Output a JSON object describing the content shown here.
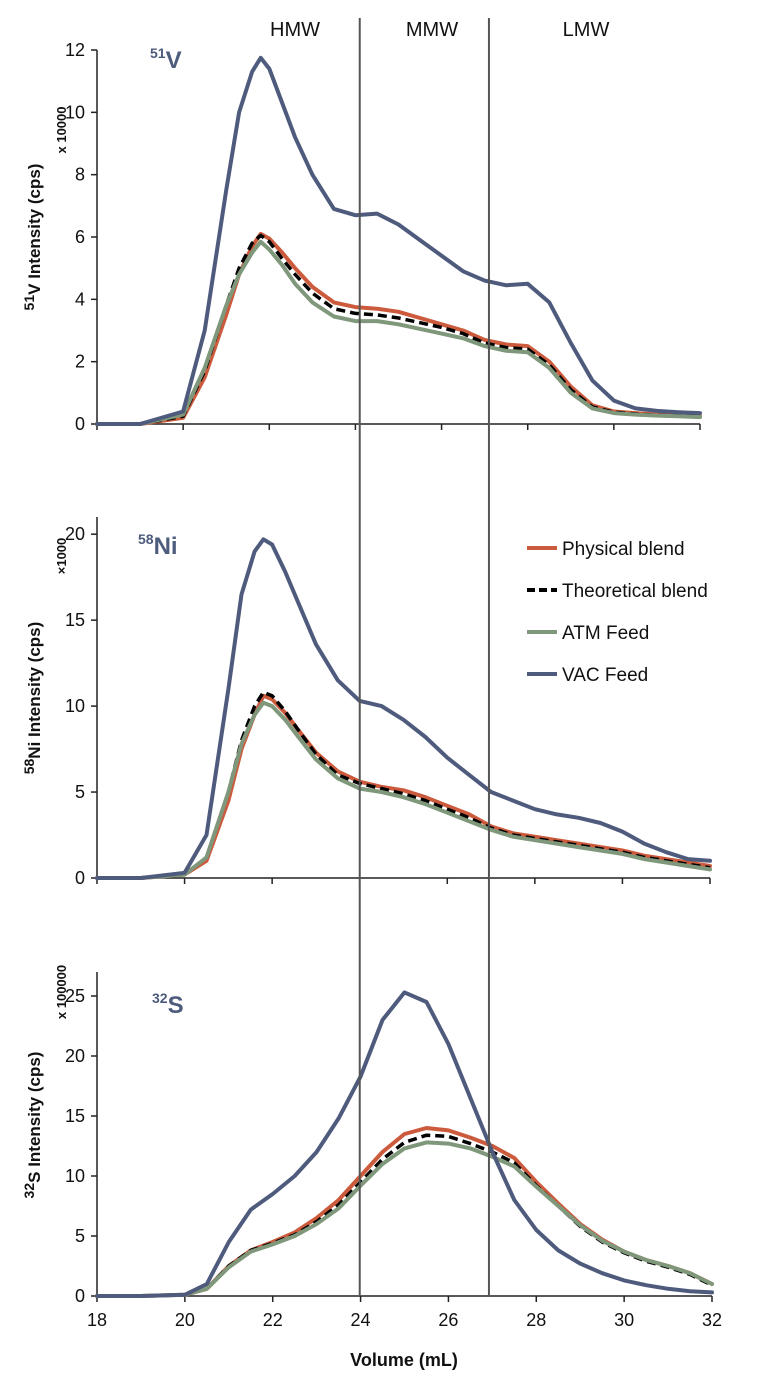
{
  "chart_data": {
    "type": "line",
    "xlabel": "Volume (mL)",
    "xlim": [
      18,
      32
    ],
    "x_ticks": [
      18,
      20,
      22,
      24,
      26,
      28,
      30,
      32
    ],
    "regions": [
      {
        "label": "HMW"
      },
      {
        "label": "MMW"
      },
      {
        "label": "LMW"
      }
    ],
    "region_boundaries": [
      24.1,
      27.1
    ],
    "legend": {
      "placement": "right, middle panel"
    },
    "colors": {
      "Physical blend": "#cc5a3c",
      "Theoretical blend": "#000000",
      "ATM Feed": "#7f977a",
      "VAC Feed": "#4f5b7d"
    },
    "panels": [
      {
        "element_mass": "51",
        "element_symbol": "V",
        "ylabel_sup": "51",
        "ylabel_rest": "V Intensity (cps)",
        "multiplier": "x 10000",
        "ylim": [
          0,
          12
        ],
        "y_ticks": [
          0,
          2,
          4,
          6,
          8,
          10,
          12
        ],
        "x": [
          18,
          19,
          20,
          20.5,
          21,
          21.3,
          21.6,
          21.8,
          22,
          22.3,
          22.6,
          23,
          23.5,
          24,
          24.5,
          25,
          25.5,
          26,
          26.5,
          27,
          27.5,
          28,
          28.5,
          29,
          29.5,
          30,
          30.5,
          31,
          31.5,
          32
        ],
        "series": [
          {
            "name": "Physical blend",
            "values": [
              0,
              0,
              0.2,
              1.5,
              3.5,
              4.8,
              5.7,
              6.1,
              5.95,
              5.5,
              5.0,
              4.4,
              3.9,
              3.75,
              3.7,
              3.6,
              3.4,
              3.2,
              3.0,
              2.7,
              2.55,
              2.5,
              2.0,
              1.2,
              0.6,
              0.4,
              0.35,
              0.3,
              0.28,
              0.25
            ]
          },
          {
            "name": "Theoretical blend",
            "values": [
              0,
              0,
              0.25,
              1.7,
              3.8,
              5.0,
              5.8,
              6.05,
              5.85,
              5.3,
              4.8,
              4.2,
              3.7,
              3.55,
              3.5,
              3.4,
              3.25,
              3.1,
              2.9,
              2.6,
              2.45,
              2.4,
              1.9,
              1.1,
              0.55,
              0.38,
              0.32,
              0.28,
              0.26,
              0.24
            ]
          },
          {
            "name": "ATM Feed",
            "values": [
              0,
              0,
              0.3,
              1.8,
              3.8,
              4.8,
              5.5,
              5.85,
              5.6,
              5.1,
              4.5,
              3.9,
              3.45,
              3.3,
              3.3,
              3.2,
              3.05,
              2.9,
              2.75,
              2.5,
              2.35,
              2.3,
              1.8,
              1.0,
              0.5,
              0.35,
              0.3,
              0.27,
              0.25,
              0.22
            ]
          },
          {
            "name": "VAC Feed",
            "values": [
              0,
              0,
              0.4,
              3.0,
              7.5,
              10.0,
              11.3,
              11.75,
              11.4,
              10.3,
              9.2,
              8.0,
              6.9,
              6.7,
              6.75,
              6.4,
              5.9,
              5.4,
              4.9,
              4.6,
              4.45,
              4.5,
              3.9,
              2.6,
              1.4,
              0.75,
              0.5,
              0.42,
              0.38,
              0.35
            ]
          }
        ]
      },
      {
        "element_mass": "58",
        "element_symbol": "Ni",
        "ylabel_sup": "58",
        "ylabel_rest": "Ni Intensity (cps)",
        "multiplier": "×1000",
        "ylim": [
          0,
          21
        ],
        "y_ticks": [
          0,
          5,
          10,
          15,
          20
        ],
        "x": [
          18,
          19,
          20,
          20.5,
          21,
          21.3,
          21.6,
          21.8,
          22,
          22.3,
          22.6,
          23,
          23.5,
          24,
          24.5,
          25,
          25.5,
          26,
          26.5,
          27,
          27.5,
          28,
          28.5,
          29,
          29.5,
          30,
          30.5,
          31,
          31.5,
          32
        ],
        "series": [
          {
            "name": "Physical blend",
            "values": [
              0,
              0,
              0.2,
              1.0,
              4.5,
              7.5,
              9.5,
              10.6,
              10.4,
              9.6,
              8.6,
              7.3,
              6.2,
              5.6,
              5.3,
              5.1,
              4.7,
              4.2,
              3.7,
              3.0,
              2.6,
              2.4,
              2.2,
              2.0,
              1.8,
              1.6,
              1.3,
              1.1,
              0.9,
              0.7
            ]
          },
          {
            "name": "Theoretical blend",
            "values": [
              0,
              0,
              0.2,
              1.2,
              5.0,
              8.0,
              10.0,
              10.8,
              10.6,
              9.7,
              8.6,
              7.2,
              6.0,
              5.5,
              5.2,
              4.9,
              4.5,
              4.0,
              3.5,
              2.9,
              2.5,
              2.3,
              2.1,
              1.9,
              1.7,
              1.5,
              1.2,
              1.0,
              0.8,
              0.6
            ]
          },
          {
            "name": "ATM Feed",
            "values": [
              0,
              0,
              0.2,
              1.2,
              5.0,
              7.8,
              9.5,
              10.2,
              10.0,
              9.2,
              8.2,
              6.9,
              5.8,
              5.2,
              5.0,
              4.7,
              4.3,
              3.8,
              3.3,
              2.8,
              2.4,
              2.2,
              2.0,
              1.8,
              1.6,
              1.4,
              1.1,
              0.9,
              0.7,
              0.5
            ]
          },
          {
            "name": "VAC Feed",
            "values": [
              0,
              0,
              0.3,
              2.5,
              11.0,
              16.5,
              19.0,
              19.7,
              19.4,
              17.8,
              16.0,
              13.6,
              11.5,
              10.3,
              10.0,
              9.2,
              8.2,
              7.0,
              6.0,
              5.0,
              4.5,
              4.0,
              3.7,
              3.5,
              3.2,
              2.7,
              2.0,
              1.5,
              1.1,
              1.0
            ]
          }
        ]
      },
      {
        "element_mass": "32",
        "element_symbol": "S",
        "ylabel_sup": "32",
        "ylabel_rest": "S Intensity (cps)",
        "multiplier": "x 100000",
        "ylim": [
          0,
          27
        ],
        "y_ticks": [
          0,
          5,
          10,
          15,
          20,
          25
        ],
        "x": [
          18,
          19,
          20,
          20.5,
          21,
          21.5,
          22,
          22.5,
          23,
          23.5,
          24,
          24.5,
          25,
          25.5,
          26,
          26.5,
          27,
          27.5,
          28,
          28.5,
          29,
          29.5,
          30,
          30.5,
          31,
          31.5,
          32
        ],
        "series": [
          {
            "name": "Physical blend",
            "values": [
              0,
              0,
              0.1,
              0.6,
              2.5,
              3.8,
              4.5,
              5.3,
              6.5,
              8.0,
              10.0,
              12.0,
              13.5,
              14.0,
              13.8,
              13.2,
              12.5,
              11.5,
              9.5,
              7.7,
              6.0,
              4.7,
              3.7,
              3.0,
              2.5,
              1.9,
              1.0
            ]
          },
          {
            "name": "Theoretical blend",
            "values": [
              0,
              0,
              0.1,
              0.6,
              2.5,
              3.8,
              4.4,
              5.1,
              6.2,
              7.6,
              9.5,
              11.4,
              12.8,
              13.4,
              13.3,
              12.7,
              12.0,
              11.1,
              9.2,
              7.5,
              5.8,
              4.5,
              3.6,
              2.9,
              2.4,
              1.8,
              0.9
            ]
          },
          {
            "name": "ATM Feed",
            "values": [
              0,
              0,
              0.1,
              0.6,
              2.4,
              3.7,
              4.3,
              5.0,
              6.0,
              7.3,
              9.2,
              11.0,
              12.3,
              12.8,
              12.7,
              12.3,
              11.6,
              10.8,
              9.1,
              7.5,
              5.9,
              4.6,
              3.7,
              3.0,
              2.5,
              1.9,
              1.0
            ]
          },
          {
            "name": "VAC Feed",
            "values": [
              0,
              0,
              0.1,
              1.0,
              4.5,
              7.2,
              8.5,
              10.0,
              12.0,
              14.8,
              18.3,
              23.0,
              25.3,
              24.5,
              21.0,
              16.5,
              12.0,
              8.0,
              5.5,
              3.8,
              2.7,
              1.9,
              1.3,
              0.9,
              0.6,
              0.4,
              0.3
            ]
          }
        ]
      }
    ]
  }
}
